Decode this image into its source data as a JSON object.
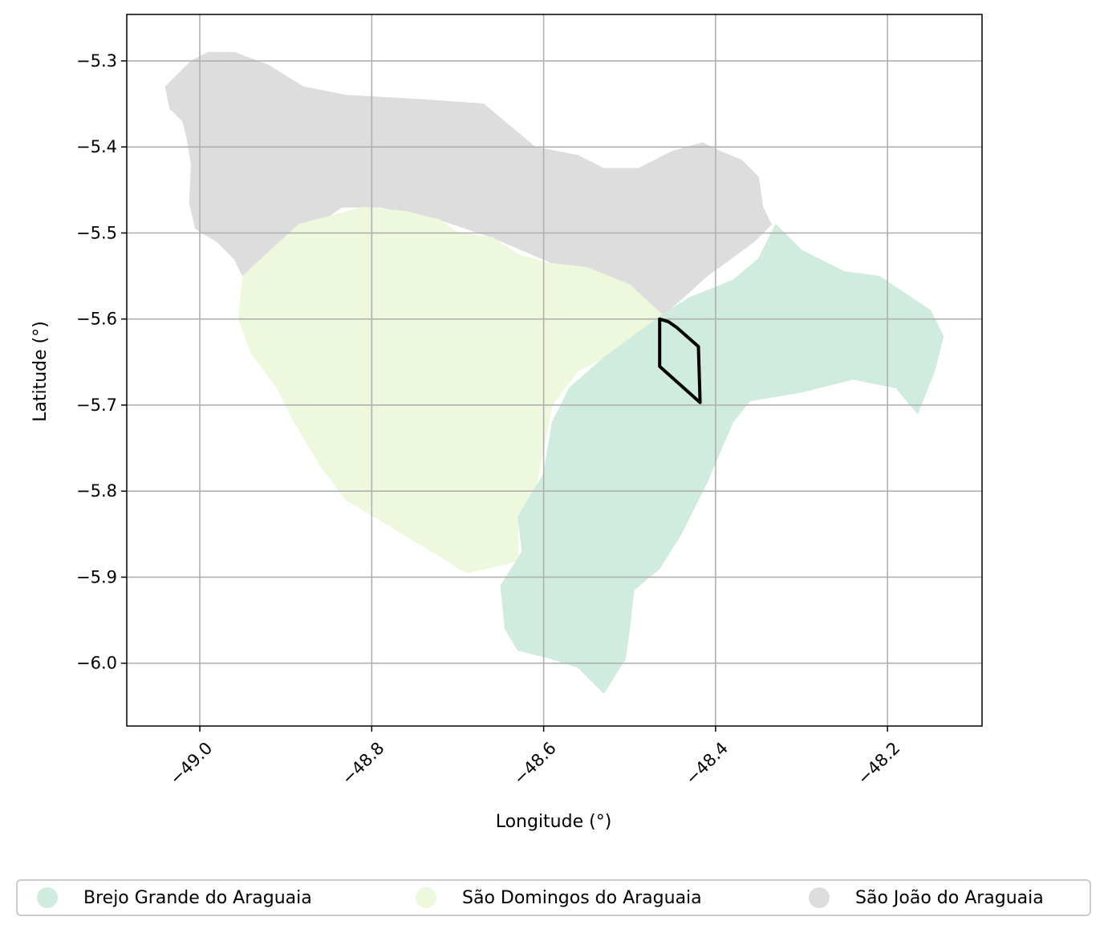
{
  "chart_data": {
    "type": "map",
    "title": "",
    "xlabel": "Longitude (°)",
    "ylabel": "Latitude (°)",
    "xlim": [
      -49.085,
      -48.09
    ],
    "ylim": [
      -6.073,
      -5.246
    ],
    "x_ticks": [
      -49.0,
      -48.8,
      -48.6,
      -48.4,
      -48.2
    ],
    "y_ticks": [
      -5.3,
      -5.4,
      -5.5,
      -5.6,
      -5.7,
      -5.8,
      -5.9,
      -6.0
    ],
    "x_tick_labels": [
      "−49.0",
      "−48.8",
      "−48.6",
      "−48.4",
      "−48.2"
    ],
    "y_tick_labels": [
      "−5.3",
      "−5.4",
      "−5.5",
      "−5.6",
      "−5.7",
      "−5.8",
      "−5.9",
      "−6.0"
    ],
    "x_tick_rotation_deg": 45,
    "grid": true,
    "legend_position": "bottom",
    "series": [
      {
        "name": "São João do Araguaia",
        "color": "#dddddd",
        "polygon": [
          [
            -49.04,
            -5.33
          ],
          [
            -49.01,
            -5.3
          ],
          [
            -48.99,
            -5.29
          ],
          [
            -48.96,
            -5.29
          ],
          [
            -48.92,
            -5.305
          ],
          [
            -48.88,
            -5.33
          ],
          [
            -48.83,
            -5.34
          ],
          [
            -48.74,
            -5.345
          ],
          [
            -48.67,
            -5.35
          ],
          [
            -48.64,
            -5.375
          ],
          [
            -48.61,
            -5.4
          ],
          [
            -48.56,
            -5.41
          ],
          [
            -48.53,
            -5.425
          ],
          [
            -48.49,
            -5.425
          ],
          [
            -48.45,
            -5.405
          ],
          [
            -48.415,
            -5.395
          ],
          [
            -48.395,
            -5.405
          ],
          [
            -48.37,
            -5.415
          ],
          [
            -48.35,
            -5.435
          ],
          [
            -48.345,
            -5.47
          ],
          [
            -48.335,
            -5.49
          ],
          [
            -48.355,
            -5.51
          ],
          [
            -48.41,
            -5.55
          ],
          [
            -48.46,
            -5.595
          ],
          [
            -48.53,
            -5.555
          ],
          [
            -48.59,
            -5.535
          ],
          [
            -48.66,
            -5.505
          ],
          [
            -48.72,
            -5.485
          ],
          [
            -48.79,
            -5.47
          ],
          [
            -48.835,
            -5.47
          ],
          [
            -48.95,
            -5.55
          ],
          [
            -48.96,
            -5.53
          ],
          [
            -48.98,
            -5.51
          ],
          [
            -49.005,
            -5.495
          ],
          [
            -49.012,
            -5.465
          ],
          [
            -49.01,
            -5.42
          ],
          [
            -49.015,
            -5.39
          ],
          [
            -49.02,
            -5.37
          ],
          [
            -49.035,
            -5.355
          ]
        ]
      },
      {
        "name": "São Domingos do Araguaia",
        "color": "#eef8dc",
        "polygon": [
          [
            -48.95,
            -5.55
          ],
          [
            -48.885,
            -5.49
          ],
          [
            -48.81,
            -5.47
          ],
          [
            -48.76,
            -5.475
          ],
          [
            -48.72,
            -5.485
          ],
          [
            -48.7,
            -5.5
          ],
          [
            -48.66,
            -5.505
          ],
          [
            -48.63,
            -5.525
          ],
          [
            -48.595,
            -5.535
          ],
          [
            -48.55,
            -5.54
          ],
          [
            -48.5,
            -5.56
          ],
          [
            -48.462,
            -5.595
          ],
          [
            -48.53,
            -5.645
          ],
          [
            -48.56,
            -5.66
          ],
          [
            -48.59,
            -5.7
          ],
          [
            -48.6,
            -5.75
          ],
          [
            -48.61,
            -5.8
          ],
          [
            -48.63,
            -5.83
          ],
          [
            -48.63,
            -5.88
          ],
          [
            -48.645,
            -5.885
          ],
          [
            -48.69,
            -5.895
          ],
          [
            -48.73,
            -5.87
          ],
          [
            -48.78,
            -5.84
          ],
          [
            -48.83,
            -5.81
          ],
          [
            -48.86,
            -5.77
          ],
          [
            -48.89,
            -5.72
          ],
          [
            -48.91,
            -5.68
          ],
          [
            -48.94,
            -5.64
          ],
          [
            -48.955,
            -5.6
          ]
        ]
      },
      {
        "name": "Brejo Grande do Araguaia",
        "color": "#cfecdf",
        "polygon": [
          [
            -48.462,
            -5.595
          ],
          [
            -48.43,
            -5.575
          ],
          [
            -48.38,
            -5.555
          ],
          [
            -48.35,
            -5.53
          ],
          [
            -48.33,
            -5.49
          ],
          [
            -48.3,
            -5.52
          ],
          [
            -48.25,
            -5.545
          ],
          [
            -48.21,
            -5.55
          ],
          [
            -48.18,
            -5.57
          ],
          [
            -48.15,
            -5.59
          ],
          [
            -48.135,
            -5.62
          ],
          [
            -48.145,
            -5.66
          ],
          [
            -48.165,
            -5.71
          ],
          [
            -48.19,
            -5.68
          ],
          [
            -48.24,
            -5.67
          ],
          [
            -48.3,
            -5.685
          ],
          [
            -48.36,
            -5.695
          ],
          [
            -48.38,
            -5.72
          ],
          [
            -48.41,
            -5.79
          ],
          [
            -48.44,
            -5.85
          ],
          [
            -48.465,
            -5.89
          ],
          [
            -48.495,
            -5.915
          ],
          [
            -48.5,
            -5.96
          ],
          [
            -48.505,
            -5.995
          ],
          [
            -48.53,
            -6.035
          ],
          [
            -48.56,
            -6.005
          ],
          [
            -48.59,
            -5.995
          ],
          [
            -48.63,
            -5.985
          ],
          [
            -48.645,
            -5.96
          ],
          [
            -48.65,
            -5.91
          ],
          [
            -48.625,
            -5.87
          ],
          [
            -48.63,
            -5.83
          ],
          [
            -48.6,
            -5.78
          ],
          [
            -48.59,
            -5.72
          ],
          [
            -48.57,
            -5.68
          ],
          [
            -48.53,
            -5.645
          ]
        ]
      }
    ],
    "outline": {
      "color": "#000000",
      "polygon": [
        [
          -48.465,
          -5.6
        ],
        [
          -48.455,
          -5.603
        ],
        [
          -48.445,
          -5.61
        ],
        [
          -48.42,
          -5.632
        ],
        [
          -48.418,
          -5.697
        ],
        [
          -48.465,
          -5.655
        ]
      ]
    }
  }
}
